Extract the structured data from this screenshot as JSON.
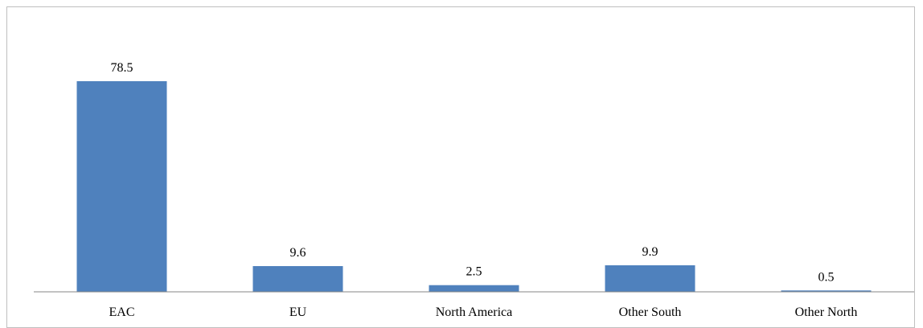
{
  "chart_data": {
    "type": "bar",
    "categories": [
      "EAC",
      "EU",
      "North America",
      "Other South",
      "Other North"
    ],
    "values": [
      78.5,
      9.6,
      2.5,
      9.9,
      0.5
    ],
    "data_labels": [
      "78.5",
      "9.6",
      "2.5",
      "9.9",
      "0.5"
    ],
    "title": "",
    "xlabel": "",
    "ylabel": "",
    "ylim": [
      0,
      78.5
    ],
    "grid": false,
    "legend": "none",
    "colors": {
      "bar": "#4f81bd",
      "axis": "#868686",
      "frame": "#bfbfbf",
      "text": "#000000"
    }
  }
}
